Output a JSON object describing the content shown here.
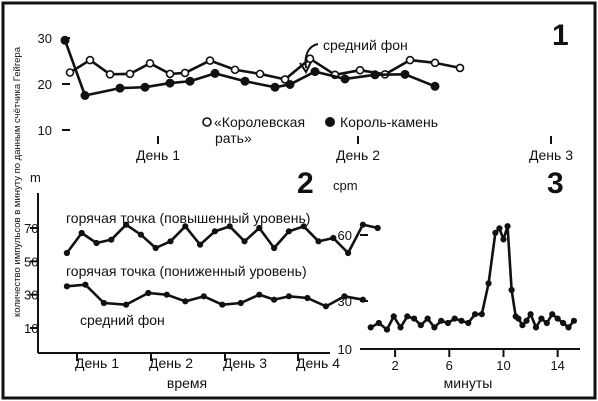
{
  "y_axis_label": "количество импульсов в минуту по данным счётчика Гейгера",
  "chart_data": [
    {
      "id": "1",
      "type": "line",
      "panel_number": "1",
      "annotation": "средний фон",
      "categories": [
        "День 1",
        "День 2",
        "День 3"
      ],
      "x": [
        0,
        0.22,
        0.44,
        0.66,
        0.88,
        1.1,
        1.32,
        1.54,
        1.76,
        1.98,
        2.2,
        2.42,
        2.64,
        2.86,
        3.08,
        3.3,
        3.52,
        3.74
      ],
      "ylim": [
        10,
        30
      ],
      "yticks": [
        "10",
        "20",
        "30"
      ],
      "series": [
        {
          "name": "«Королевская рать»",
          "marker": "open",
          "x": [
            -0.15,
            0.05,
            0.25,
            0.45,
            0.65,
            0.85,
            1.0,
            1.25,
            1.5,
            1.75,
            2.0,
            2.25,
            2.5,
            2.75,
            3.0,
            3.25,
            3.5,
            3.75
          ],
          "values": [
            22.5,
            25.2,
            22.1,
            22.2,
            24.5,
            22.2,
            22.4,
            25.1,
            23.1,
            22.2,
            21.0,
            25.5,
            22.0,
            23.0,
            22.1,
            25.2,
            24.6,
            23.5
          ]
        },
        {
          "name": "Король-камень",
          "marker": "solid",
          "x": [
            -0.2,
            0.0,
            0.35,
            0.6,
            0.85,
            1.05,
            1.3,
            1.6,
            1.9,
            2.05,
            2.3,
            2.6,
            2.9,
            3.2,
            3.5
          ],
          "values": [
            29.5,
            17.5,
            19.1,
            19.3,
            20.2,
            20.6,
            22.3,
            20.6,
            19.3,
            19.9,
            22.7,
            21.1,
            22.0,
            22.1,
            19.5
          ]
        }
      ]
    },
    {
      "id": "2",
      "type": "line",
      "panel_number": "2",
      "y_unit": "m",
      "unit": "cpm",
      "xlabel": "время",
      "categories": [
        "День 1",
        "День 2",
        "День 3",
        "День 4"
      ],
      "ylim": [
        10,
        70
      ],
      "yticks": [
        "10",
        "30",
        "50",
        "70"
      ],
      "series": [
        {
          "name": "горячая точка (повышенный уровень)",
          "x": [
            -0.15,
            0.05,
            0.25,
            0.45,
            0.65,
            0.85,
            1.05,
            1.25,
            1.45,
            1.65,
            1.85,
            2.05,
            2.25,
            2.45,
            2.65,
            2.85,
            3.05,
            3.25,
            3.45,
            3.65,
            3.85,
            4.05
          ],
          "values": [
            55,
            67,
            61,
            63,
            72,
            66,
            58,
            62,
            71,
            60,
            68,
            71,
            62,
            70,
            58,
            68,
            71,
            62,
            64,
            55,
            72,
            70
          ]
        },
        {
          "name": "горячая точка (пониженный уровень)",
          "x": [
            -0.15,
            0.1,
            0.35,
            0.65,
            0.95,
            1.2,
            1.45,
            1.7,
            1.95,
            2.2,
            2.45,
            2.65,
            2.85,
            3.1,
            3.35,
            3.6,
            3.85
          ],
          "values": [
            35,
            36,
            25,
            24,
            31,
            30,
            26,
            29,
            24,
            25,
            30,
            27,
            29,
            28,
            23,
            29,
            27
          ]
        }
      ],
      "annotation": "средний фон"
    },
    {
      "id": "3",
      "type": "line",
      "panel_number": "3",
      "xlabel": "минуты",
      "xticks": [
        "2",
        "6",
        "10",
        "14"
      ],
      "xlim": [
        0,
        15.5
      ],
      "ylim": [
        10,
        60
      ],
      "yticks": [
        "10",
        "30",
        "60"
      ],
      "series": [
        {
          "name": "",
          "x": [
            0.2,
            0.8,
            1.4,
            1.9,
            2.4,
            2.9,
            3.4,
            3.9,
            4.4,
            4.9,
            5.4,
            5.9,
            6.4,
            6.9,
            7.4,
            7.9,
            8.4,
            8.9,
            9.4,
            9.7,
            10.0,
            10.3,
            10.6,
            10.9,
            11.1,
            11.4,
            11.7,
            12.0,
            12.4,
            12.8,
            13.2,
            13.6,
            14.0,
            14.4,
            14.8,
            15.2
          ],
          "values": [
            18,
            20,
            17,
            23,
            18,
            23,
            22,
            19,
            22,
            18,
            21,
            20,
            22,
            21,
            20,
            24,
            24,
            38,
            61,
            63,
            58,
            64,
            35,
            23,
            22,
            19,
            21,
            24,
            18,
            22,
            20,
            24,
            22,
            20,
            18,
            21
          ]
        }
      ]
    }
  ]
}
